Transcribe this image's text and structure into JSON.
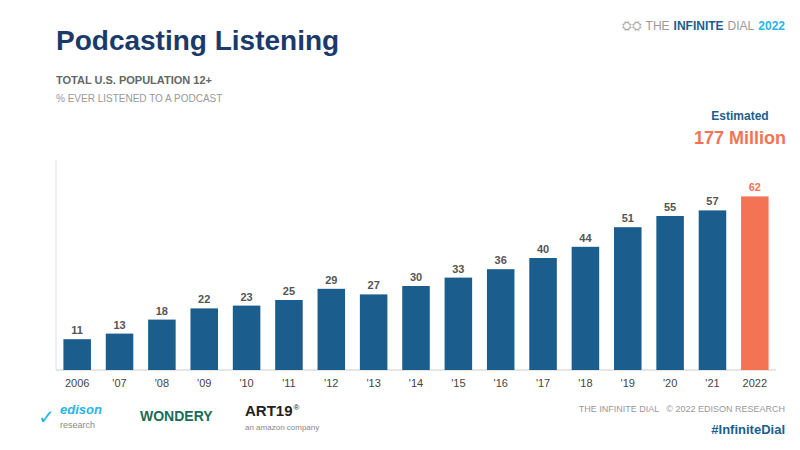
{
  "chart_data": {
    "type": "bar",
    "title": "Podcasting Listening",
    "subtitle": [
      "TOTAL U.S. POPULATION 12+",
      "% EVER LISTENED TO A PODCAST"
    ],
    "categories": [
      "2006",
      "'07",
      "'08",
      "'09",
      "'10",
      "'11",
      "'12",
      "'13",
      "'14",
      "'15",
      "'16",
      "'17",
      "'18",
      "'19",
      "'20",
      "'21",
      "2022"
    ],
    "values": [
      11,
      13,
      18,
      22,
      23,
      25,
      29,
      27,
      30,
      33,
      36,
      40,
      44,
      51,
      55,
      57,
      62
    ],
    "colors": [
      "#1b5e8e",
      "#1b5e8e",
      "#1b5e8e",
      "#1b5e8e",
      "#1b5e8e",
      "#1b5e8e",
      "#1b5e8e",
      "#1b5e8e",
      "#1b5e8e",
      "#1b5e8e",
      "#1b5e8e",
      "#1b5e8e",
      "#1b5e8e",
      "#1b5e8e",
      "#1b5e8e",
      "#1b5e8e",
      "#f47355"
    ],
    "ylim": [
      0,
      75
    ],
    "grid": false,
    "data_labels": true,
    "tick_labels": "x",
    "annotations": [
      "⛭⛭",
      "THE",
      "INFINITE",
      "DIAL",
      "2022",
      "Estimated",
      "177 Million",
      "✓",
      "edison",
      "research",
      "WONDERY",
      "ART19",
      "®",
      "an amazon company",
      "THE INFINITE DIAL   © 2022 EDISON RESEARCH",
      "#InfiniteDial"
    ]
  }
}
